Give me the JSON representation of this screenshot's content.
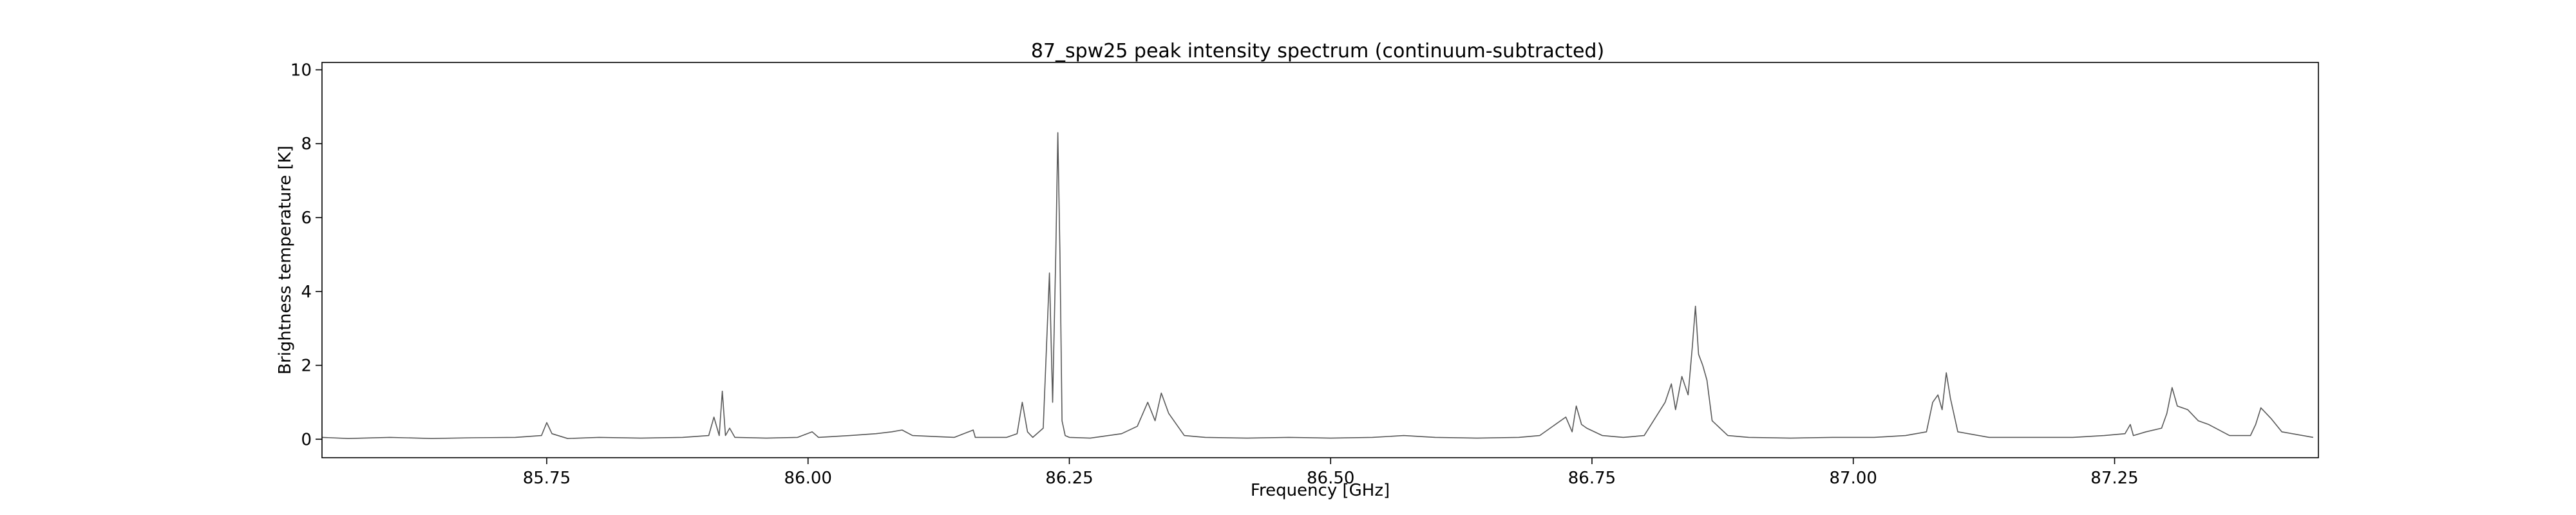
{
  "chart_data": {
    "type": "line",
    "title": "87_spw25 peak intensity spectrum (continuum-subtracted)",
    "xlabel": "Frequency [GHz]",
    "ylabel": "Brightness temperature [K]",
    "xlim": [
      85.535,
      87.445
    ],
    "ylim": [
      -0.5,
      10.2
    ],
    "x_ticks": [
      85.75,
      86.0,
      86.25,
      86.5,
      86.75,
      87.0,
      87.25
    ],
    "x_tick_labels": [
      "85.75",
      "86.00",
      "86.25",
      "86.50",
      "86.75",
      "87.00",
      "87.25"
    ],
    "y_ticks": [
      0,
      2,
      4,
      6,
      8,
      10
    ],
    "y_tick_labels": [
      "0",
      "2",
      "4",
      "6",
      "8",
      "10"
    ],
    "grid": false,
    "line_color": "#595959",
    "series": [
      {
        "x": [
          85.535,
          85.56,
          85.6,
          85.64,
          85.68,
          85.72,
          85.745,
          85.75,
          85.755,
          85.77,
          85.8,
          85.84,
          85.88,
          85.905,
          85.91,
          85.915,
          85.918,
          85.921,
          85.925,
          85.93,
          85.96,
          85.99,
          86.004,
          86.01,
          86.04,
          86.065,
          86.08,
          86.09,
          86.1,
          86.14,
          86.158,
          86.16,
          86.19,
          86.2,
          86.205,
          86.21,
          86.215,
          86.225,
          86.231,
          86.234,
          86.237,
          86.239,
          86.241,
          86.243,
          86.246,
          86.25,
          86.27,
          86.3,
          86.315,
          86.325,
          86.332,
          86.338,
          86.345,
          86.36,
          86.38,
          86.42,
          86.46,
          86.5,
          86.54,
          86.57,
          86.6,
          86.64,
          86.68,
          86.7,
          86.725,
          86.731,
          86.735,
          86.74,
          86.745,
          86.76,
          86.78,
          86.8,
          86.82,
          86.826,
          86.83,
          86.836,
          86.842,
          86.846,
          86.849,
          86.852,
          86.856,
          86.86,
          86.865,
          86.88,
          86.9,
          86.94,
          86.98,
          87.02,
          87.05,
          87.07,
          87.076,
          87.081,
          87.085,
          87.089,
          87.093,
          87.1,
          87.13,
          87.17,
          87.21,
          87.24,
          87.26,
          87.265,
          87.268,
          87.28,
          87.295,
          87.3,
          87.305,
          87.31,
          87.32,
          87.33,
          87.34,
          87.36,
          87.38,
          87.385,
          87.39,
          87.4,
          87.41,
          87.44
        ],
        "values": [
          0.05,
          0.02,
          0.05,
          0.02,
          0.04,
          0.05,
          0.1,
          0.45,
          0.15,
          0.02,
          0.05,
          0.03,
          0.05,
          0.1,
          0.6,
          0.1,
          1.3,
          0.1,
          0.3,
          0.05,
          0.03,
          0.05,
          0.2,
          0.05,
          0.1,
          0.15,
          0.2,
          0.25,
          0.1,
          0.05,
          0.25,
          0.05,
          0.05,
          0.15,
          1.0,
          0.2,
          0.05,
          0.3,
          4.5,
          1.0,
          5.0,
          8.3,
          5.0,
          0.5,
          0.1,
          0.05,
          0.03,
          0.15,
          0.35,
          1.0,
          0.5,
          1.25,
          0.7,
          0.1,
          0.05,
          0.03,
          0.05,
          0.03,
          0.05,
          0.1,
          0.05,
          0.03,
          0.05,
          0.1,
          0.6,
          0.2,
          0.9,
          0.4,
          0.3,
          0.1,
          0.05,
          0.1,
          1.0,
          1.5,
          0.8,
          1.7,
          1.2,
          2.5,
          3.6,
          2.3,
          2.0,
          1.6,
          0.5,
          0.1,
          0.05,
          0.03,
          0.05,
          0.05,
          0.1,
          0.2,
          1.0,
          1.2,
          0.8,
          1.8,
          1.1,
          0.2,
          0.05,
          0.05,
          0.05,
          0.1,
          0.15,
          0.4,
          0.1,
          0.2,
          0.3,
          0.7,
          1.4,
          0.9,
          0.8,
          0.5,
          0.4,
          0.1,
          0.1,
          0.4,
          0.85,
          0.55,
          0.2,
          0.05
        ]
      }
    ]
  }
}
